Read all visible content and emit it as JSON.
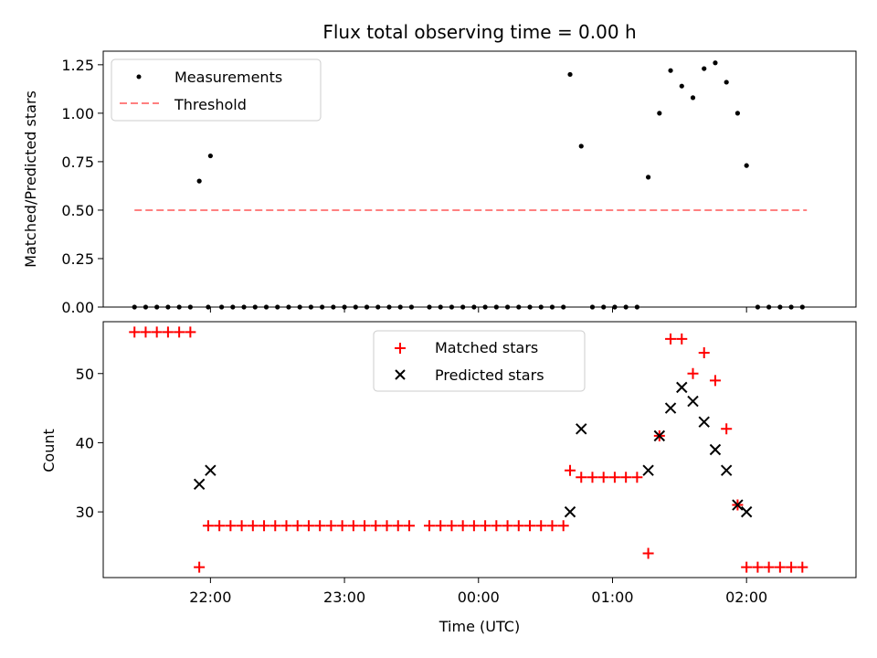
{
  "chart_data": [
    {
      "type": "scatter",
      "title": "Flux total observing time = 0.00 h",
      "xlabel": "",
      "ylabel": "Matched/Predicted stars",
      "ylim": [
        0,
        1.32
      ],
      "yticks": [
        0.0,
        0.25,
        0.5,
        0.75,
        1.0,
        1.25
      ],
      "ytick_labels": [
        "0.00",
        "0.25",
        "0.50",
        "0.75",
        "1.00",
        "1.25"
      ],
      "xlim": [
        "21:12",
        "02:49"
      ],
      "xticks": [
        "22:00",
        "23:00",
        "00:00",
        "01:00",
        "02:00"
      ],
      "legend_position": "top-left",
      "series": [
        {
          "name": "Measurements",
          "marker": "dot",
          "color": "#000000",
          "points": [
            [
              "21:26",
              0
            ],
            [
              "21:31",
              0
            ],
            [
              "21:36",
              0
            ],
            [
              "21:41",
              0
            ],
            [
              "21:46",
              0
            ],
            [
              "21:51",
              0
            ],
            [
              "21:55",
              0.65
            ],
            [
              "22:00",
              0.78
            ],
            [
              "21:59",
              0
            ],
            [
              "22:05",
              0
            ],
            [
              "22:10",
              0
            ],
            [
              "22:15",
              0
            ],
            [
              "22:20",
              0
            ],
            [
              "22:25",
              0
            ],
            [
              "22:30",
              0
            ],
            [
              "22:35",
              0
            ],
            [
              "22:40",
              0
            ],
            [
              "22:45",
              0
            ],
            [
              "22:50",
              0
            ],
            [
              "22:55",
              0
            ],
            [
              "23:00",
              0
            ],
            [
              "23:05",
              0
            ],
            [
              "23:10",
              0
            ],
            [
              "23:15",
              0
            ],
            [
              "23:20",
              0
            ],
            [
              "23:25",
              0
            ],
            [
              "23:30",
              0
            ],
            [
              "23:38",
              0
            ],
            [
              "23:43",
              0
            ],
            [
              "23:48",
              0
            ],
            [
              "23:53",
              0
            ],
            [
              "23:58",
              0
            ],
            [
              "00:03",
              0
            ],
            [
              "00:08",
              0
            ],
            [
              "00:13",
              0
            ],
            [
              "00:18",
              0
            ],
            [
              "00:23",
              0
            ],
            [
              "00:28",
              0
            ],
            [
              "00:33",
              0
            ],
            [
              "00:38",
              0
            ],
            [
              "00:41",
              1.2
            ],
            [
              "00:46",
              0.83
            ],
            [
              "00:51",
              0
            ],
            [
              "00:56",
              0
            ],
            [
              "01:01",
              0
            ],
            [
              "01:06",
              0
            ],
            [
              "01:11",
              0
            ],
            [
              "01:16",
              0.67
            ],
            [
              "01:21",
              1.0
            ],
            [
              "01:26",
              1.22
            ],
            [
              "01:31",
              1.14
            ],
            [
              "01:36",
              1.08
            ],
            [
              "01:41",
              1.23
            ],
            [
              "01:46",
              1.26
            ],
            [
              "01:51",
              1.16
            ],
            [
              "01:56",
              1.0
            ],
            [
              "02:00",
              0.73
            ],
            [
              "02:05",
              0
            ],
            [
              "02:10",
              0
            ],
            [
              "02:15",
              0
            ],
            [
              "02:20",
              0
            ],
            [
              "02:25",
              0
            ]
          ]
        },
        {
          "name": "Threshold",
          "marker": "dashed-line",
          "color": "#ff8080",
          "points": [
            [
              "21:26",
              0.5
            ],
            [
              "02:27",
              0.5
            ]
          ]
        }
      ]
    },
    {
      "type": "scatter",
      "title": "",
      "xlabel": "Time (UTC)",
      "ylabel": "Count",
      "ylim": [
        20.5,
        57.5
      ],
      "yticks": [
        30,
        40,
        50
      ],
      "ytick_labels": [
        "30",
        "40",
        "50"
      ],
      "xlim": [
        "21:12",
        "02:49"
      ],
      "xticks": [
        "22:00",
        "23:00",
        "00:00",
        "01:00",
        "02:00"
      ],
      "xtick_labels": [
        "22:00",
        "23:00",
        "00:00",
        "01:00",
        "02:00"
      ],
      "legend_position": "top-center",
      "series": [
        {
          "name": "Matched stars",
          "marker": "plus",
          "color": "#ff0000",
          "points": [
            [
              "21:26",
              56
            ],
            [
              "21:31",
              56
            ],
            [
              "21:36",
              56
            ],
            [
              "21:41",
              56
            ],
            [
              "21:46",
              56
            ],
            [
              "21:51",
              56
            ],
            [
              "21:55",
              22
            ],
            [
              "21:59",
              28
            ],
            [
              "22:04",
              28
            ],
            [
              "22:09",
              28
            ],
            [
              "22:14",
              28
            ],
            [
              "22:19",
              28
            ],
            [
              "22:24",
              28
            ],
            [
              "22:29",
              28
            ],
            [
              "22:34",
              28
            ],
            [
              "22:39",
              28
            ],
            [
              "22:44",
              28
            ],
            [
              "22:49",
              28
            ],
            [
              "22:54",
              28
            ],
            [
              "22:59",
              28
            ],
            [
              "23:04",
              28
            ],
            [
              "23:09",
              28
            ],
            [
              "23:14",
              28
            ],
            [
              "23:19",
              28
            ],
            [
              "23:24",
              28
            ],
            [
              "23:29",
              28
            ],
            [
              "23:38",
              28
            ],
            [
              "23:43",
              28
            ],
            [
              "23:48",
              28
            ],
            [
              "23:53",
              28
            ],
            [
              "23:58",
              28
            ],
            [
              "00:03",
              28
            ],
            [
              "00:08",
              28
            ],
            [
              "00:13",
              28
            ],
            [
              "00:18",
              28
            ],
            [
              "00:23",
              28
            ],
            [
              "00:28",
              28
            ],
            [
              "00:33",
              28
            ],
            [
              "00:38",
              28
            ],
            [
              "00:41",
              36
            ],
            [
              "00:46",
              35
            ],
            [
              "00:51",
              35
            ],
            [
              "00:56",
              35
            ],
            [
              "01:01",
              35
            ],
            [
              "01:06",
              35
            ],
            [
              "01:11",
              35
            ],
            [
              "01:16",
              24
            ],
            [
              "01:21",
              41
            ],
            [
              "01:26",
              55
            ],
            [
              "01:31",
              55
            ],
            [
              "01:36",
              50
            ],
            [
              "01:41",
              53
            ],
            [
              "01:46",
              49
            ],
            [
              "01:51",
              42
            ],
            [
              "01:56",
              31
            ],
            [
              "02:00",
              22
            ],
            [
              "02:05",
              22
            ],
            [
              "02:10",
              22
            ],
            [
              "02:15",
              22
            ],
            [
              "02:20",
              22
            ],
            [
              "02:25",
              22
            ]
          ]
        },
        {
          "name": "Predicted stars",
          "marker": "x",
          "color": "#000000",
          "points": [
            [
              "21:55",
              34
            ],
            [
              "22:00",
              36
            ],
            [
              "00:41",
              30
            ],
            [
              "00:46",
              42
            ],
            [
              "01:16",
              36
            ],
            [
              "01:21",
              41
            ],
            [
              "01:26",
              45
            ],
            [
              "01:31",
              48
            ],
            [
              "01:36",
              46
            ],
            [
              "01:41",
              43
            ],
            [
              "01:46",
              39
            ],
            [
              "01:51",
              36
            ],
            [
              "01:56",
              31
            ],
            [
              "02:00",
              30
            ]
          ]
        }
      ]
    }
  ]
}
